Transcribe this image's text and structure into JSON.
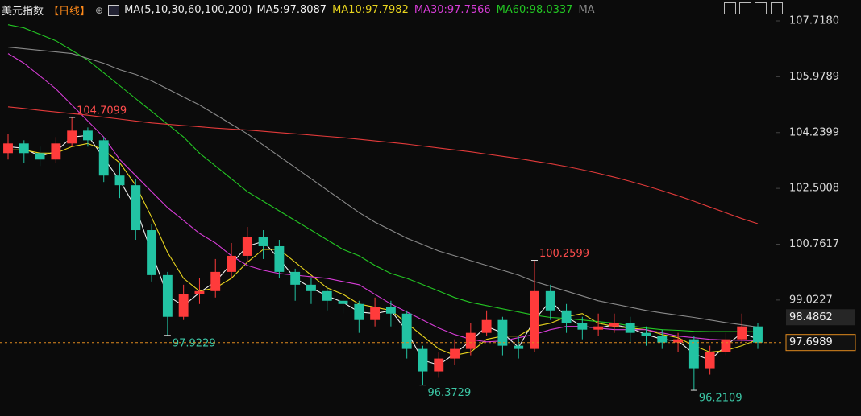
{
  "chart_data": {
    "type": "candlestick",
    "title": "美元指数",
    "period": "【日线】",
    "legend_title": "MA(5,10,30,60,100,200)",
    "categories": [
      null,
      null,
      null,
      null,
      null,
      null,
      null,
      null,
      null,
      null,
      null,
      null,
      null,
      null,
      null,
      null,
      null,
      null,
      null,
      null,
      null,
      null,
      null,
      null,
      null,
      null,
      null,
      null,
      null,
      null,
      null,
      null,
      null,
      null,
      null,
      null,
      null,
      null,
      null,
      null,
      null,
      null,
      null,
      null,
      null,
      null,
      null,
      null
    ],
    "open": [
      103.6,
      103.9,
      103.6,
      103.4,
      103.9,
      104.3,
      104.0,
      102.9,
      102.6,
      101.2,
      99.8,
      98.5,
      99.2,
      99.3,
      99.9,
      100.4,
      101.0,
      100.7,
      99.9,
      99.5,
      99.3,
      99.0,
      98.9,
      98.4,
      98.8,
      98.6,
      97.5,
      96.8,
      97.2,
      97.5,
      98.0,
      98.4,
      97.6,
      97.5,
      99.3,
      98.7,
      98.3,
      98.1,
      98.2,
      98.3,
      98.0,
      97.9,
      97.7,
      97.8,
      96.9,
      97.4,
      97.8,
      98.2
    ],
    "high": [
      104.2,
      104.0,
      103.8,
      104.1,
      104.7099,
      104.4,
      104.1,
      103.3,
      102.8,
      101.4,
      99.9,
      99.5,
      99.7,
      100.3,
      100.8,
      101.3,
      101.2,
      100.9,
      100.0,
      99.7,
      99.4,
      99.2,
      99.0,
      99.1,
      99.0,
      98.7,
      97.6,
      97.4,
      97.8,
      98.3,
      98.7,
      98.5,
      97.9,
      100.2599,
      99.5,
      98.9,
      98.5,
      98.6,
      98.6,
      98.5,
      98.2,
      98.1,
      98.0,
      97.9,
      97.6,
      98.0,
      98.6,
      98.3
    ],
    "low": [
      103.4,
      103.3,
      103.2,
      103.3,
      103.8,
      103.8,
      102.7,
      102.2,
      100.9,
      99.6,
      97.9229,
      98.4,
      98.9,
      99.1,
      99.7,
      100.2,
      100.3,
      99.7,
      99.0,
      98.9,
      98.7,
      98.6,
      98.0,
      98.2,
      98.2,
      97.2,
      96.3729,
      96.6,
      97.0,
      97.3,
      97.9,
      97.3,
      97.2,
      97.4,
      98.4,
      98.0,
      97.8,
      97.9,
      98.0,
      97.7,
      97.6,
      97.5,
      97.4,
      96.2109,
      96.7,
      97.3,
      97.7,
      97.5
    ],
    "close": [
      103.9,
      103.6,
      103.4,
      103.9,
      104.3,
      104.0,
      102.9,
      102.6,
      101.2,
      99.8,
      98.5,
      99.2,
      99.3,
      99.9,
      100.4,
      101.0,
      100.7,
      99.9,
      99.5,
      99.3,
      99.0,
      98.9,
      98.4,
      98.8,
      98.6,
      97.5,
      96.8,
      97.2,
      97.5,
      98.0,
      98.4,
      97.6,
      97.5,
      99.3,
      98.7,
      98.3,
      98.1,
      98.2,
      98.3,
      98.0,
      97.9,
      97.7,
      97.8,
      96.9,
      97.4,
      97.8,
      98.2,
      97.6989
    ],
    "up_color": "#ff3b3b",
    "down_color": "#22c3a3",
    "series": [
      {
        "name": "MA5:97.8087",
        "color": "#f0f0f0",
        "values": [
          103.8,
          103.75,
          103.5,
          103.65,
          104.1,
          104.15,
          103.45,
          102.75,
          101.9,
          100.5,
          99.15,
          98.85,
          99.25,
          99.6,
          100.15,
          100.7,
          100.85,
          100.3,
          99.7,
          99.4,
          99.15,
          98.95,
          98.65,
          98.6,
          98.7,
          98.05,
          97.15,
          97.0,
          97.35,
          97.75,
          98.2,
          98.0,
          97.55,
          98.4,
          99.0,
          98.5,
          98.2,
          98.15,
          98.25,
          98.15,
          97.95,
          97.8,
          97.75,
          97.35,
          97.15,
          97.6,
          98.0,
          97.8087
        ]
      },
      {
        "name": "MA10:97.7982",
        "color": "#e8d41e",
        "values": [
          103.7,
          103.7,
          103.6,
          103.6,
          103.8,
          103.9,
          103.7,
          103.3,
          102.6,
          101.6,
          100.5,
          99.7,
          99.3,
          99.4,
          99.7,
          100.2,
          100.6,
          100.6,
          100.2,
          99.8,
          99.4,
          99.2,
          98.9,
          98.8,
          98.7,
          98.3,
          97.9,
          97.5,
          97.3,
          97.4,
          97.8,
          97.9,
          97.9,
          98.2,
          98.3,
          98.5,
          98.6,
          98.3,
          98.2,
          98.15,
          98.1,
          97.95,
          97.85,
          97.6,
          97.4,
          97.45,
          97.6,
          97.7982
        ]
      },
      {
        "name": "MA30:97.7566",
        "color": "#d63cd6",
        "values": [
          106.7,
          106.4,
          106.0,
          105.6,
          105.1,
          104.6,
          104.1,
          103.4,
          102.9,
          102.4,
          101.9,
          101.5,
          101.1,
          100.8,
          100.4,
          100.1,
          99.95,
          99.85,
          99.8,
          99.75,
          99.7,
          99.6,
          99.5,
          99.2,
          98.9,
          98.65,
          98.4,
          98.15,
          97.95,
          97.8,
          97.72,
          97.75,
          97.85,
          97.95,
          98.1,
          98.2,
          98.2,
          98.15,
          98.1,
          98.1,
          98.1,
          98.0,
          97.9,
          97.85,
          97.8,
          97.78,
          97.77,
          97.7566
        ]
      },
      {
        "name": "MA60:98.0337",
        "color": "#23c623",
        "values": [
          107.6,
          107.5,
          107.3,
          107.1,
          106.8,
          106.5,
          106.1,
          105.7,
          105.3,
          104.9,
          104.5,
          104.1,
          103.6,
          103.2,
          102.8,
          102.4,
          102.1,
          101.8,
          101.5,
          101.2,
          100.9,
          100.6,
          100.4,
          100.1,
          99.85,
          99.7,
          99.5,
          99.3,
          99.1,
          98.95,
          98.85,
          98.75,
          98.65,
          98.55,
          98.48,
          98.45,
          98.4,
          98.35,
          98.3,
          98.22,
          98.15,
          98.1,
          98.08,
          98.05,
          98.04,
          98.04,
          98.04,
          98.0337
        ]
      },
      {
        "name": "MA",
        "color": "#8a8a8a",
        "values": [
          106.9,
          106.85,
          106.8,
          106.75,
          106.7,
          106.55,
          106.4,
          106.2,
          106.05,
          105.85,
          105.6,
          105.35,
          105.1,
          104.8,
          104.5,
          104.2,
          103.85,
          103.5,
          103.15,
          102.8,
          102.45,
          102.1,
          101.75,
          101.45,
          101.2,
          100.95,
          100.75,
          100.55,
          100.4,
          100.25,
          100.1,
          99.95,
          99.8,
          99.6,
          99.45,
          99.3,
          99.15,
          99.0,
          98.9,
          98.8,
          98.7,
          98.62,
          98.55,
          98.48,
          98.4,
          98.32,
          98.25,
          98.18
        ]
      },
      {
        "color": "#e23a3a",
        "values": [
          105.04,
          104.99,
          104.93,
          104.88,
          104.83,
          104.78,
          104.72,
          104.66,
          104.6,
          104.54,
          104.5,
          104.46,
          104.42,
          104.38,
          104.35,
          104.32,
          104.28,
          104.24,
          104.2,
          104.16,
          104.12,
          104.08,
          104.03,
          103.98,
          103.93,
          103.88,
          103.82,
          103.76,
          103.7,
          103.64,
          103.57,
          103.5,
          103.43,
          103.35,
          103.27,
          103.18,
          103.08,
          102.97,
          102.85,
          102.72,
          102.58,
          102.43,
          102.27,
          102.1,
          101.92,
          101.74,
          101.56,
          101.4
        ]
      }
    ],
    "ylim": [
      95.41,
      108.37
    ],
    "yticks": [
      {
        "value": 107.718,
        "label": "107.7180"
      },
      105.9789,
      104.2399,
      102.5008,
      100.7617,
      99.0227
    ],
    "price_tags": [
      98.4862
    ],
    "grid": false
  }
}
